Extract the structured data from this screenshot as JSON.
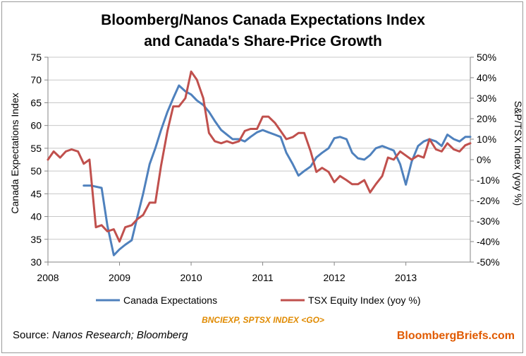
{
  "title_line1": "Bloomberg/Nanos Canada Expectations Index",
  "title_line2": "and Canada's Share-Price Growth",
  "source_prefix": "Source: ",
  "source_italic": "Nanos Research; Bloomberg",
  "ticker": "BNCIEXP, SPTSX INDEX <GO>",
  "brand": "BloombergBriefs.com",
  "colors": {
    "series1": "#4f81bd",
    "series2": "#c0504d",
    "grid": "#c8c8c8",
    "axis": "#868686"
  },
  "chart_data": {
    "type": "line",
    "title": "Bloomberg/Nanos Canada Expectations Index and Canada's Share-Price Growth",
    "ylabel": "Canada Expectations Index",
    "y2label": "S&P/TSX Index (yoy %)",
    "xlim": [
      2008,
      2013.9
    ],
    "ylim": [
      30,
      75
    ],
    "y2lim": [
      -50,
      50
    ],
    "x_ticks": [
      "2008",
      "2009",
      "2010",
      "2011",
      "2012",
      "2013"
    ],
    "y_ticks": [
      "30",
      "35",
      "40",
      "45",
      "50",
      "55",
      "60",
      "65",
      "70",
      "75"
    ],
    "y2_ticks": [
      "-50%",
      "-40%",
      "-30%",
      "-20%",
      "-10%",
      "0%",
      "10%",
      "20%",
      "30%",
      "40%",
      "50%"
    ],
    "grid": true,
    "legend_position": "bottom",
    "series": [
      {
        "name": "Canada Expectations",
        "axis": "left",
        "x": [
          2008.5,
          2008.6,
          2008.75,
          2008.83,
          2008.92,
          2009.0,
          2009.08,
          2009.17,
          2009.25,
          2009.33,
          2009.42,
          2009.5,
          2009.58,
          2009.67,
          2009.75,
          2009.83,
          2009.92,
          2010.0,
          2010.08,
          2010.17,
          2010.25,
          2010.33,
          2010.42,
          2010.5,
          2010.58,
          2010.67,
          2010.75,
          2010.83,
          2010.92,
          2011.0,
          2011.08,
          2011.17,
          2011.25,
          2011.33,
          2011.42,
          2011.5,
          2011.58,
          2011.67,
          2011.75,
          2011.83,
          2011.92,
          2012.0,
          2012.08,
          2012.17,
          2012.25,
          2012.33,
          2012.42,
          2012.5,
          2012.58,
          2012.67,
          2012.75,
          2012.83,
          2012.92,
          2013.0,
          2013.08,
          2013.17,
          2013.25,
          2013.33,
          2013.42,
          2013.5,
          2013.58,
          2013.67,
          2013.75,
          2013.83,
          2013.9
        ],
        "values": [
          46.8,
          46.8,
          46.3,
          38.0,
          31.5,
          32.8,
          33.8,
          34.8,
          40.0,
          45.0,
          51.5,
          55.0,
          59.0,
          63.0,
          66.0,
          68.8,
          67.5,
          66.8,
          65.5,
          64.5,
          63.0,
          61.0,
          59.0,
          58.0,
          57.0,
          57.0,
          56.5,
          57.5,
          58.5,
          59.0,
          58.5,
          58.0,
          57.5,
          54.0,
          51.5,
          49.0,
          50.0,
          51.0,
          53.0,
          54.0,
          55.0,
          57.2,
          57.5,
          57.0,
          54.0,
          52.8,
          52.5,
          53.5,
          55.0,
          55.5,
          55.0,
          54.5,
          51.5,
          47.0,
          52.0,
          55.5,
          56.5,
          57.0,
          56.5,
          55.5,
          58.0,
          57.0,
          56.5,
          57.5,
          57.5
        ]
      },
      {
        "name": "TSX Equity Index (yoy %)",
        "axis": "right",
        "x": [
          2008.0,
          2008.08,
          2008.17,
          2008.25,
          2008.33,
          2008.42,
          2008.5,
          2008.58,
          2008.67,
          2008.75,
          2008.83,
          2008.92,
          2009.0,
          2009.08,
          2009.17,
          2009.25,
          2009.33,
          2009.42,
          2009.5,
          2009.58,
          2009.67,
          2009.75,
          2009.83,
          2009.92,
          2010.0,
          2010.08,
          2010.17,
          2010.25,
          2010.33,
          2010.42,
          2010.5,
          2010.58,
          2010.67,
          2010.75,
          2010.83,
          2010.92,
          2011.0,
          2011.08,
          2011.17,
          2011.25,
          2011.33,
          2011.42,
          2011.5,
          2011.58,
          2011.67,
          2011.75,
          2011.83,
          2011.92,
          2012.0,
          2012.08,
          2012.17,
          2012.25,
          2012.33,
          2012.42,
          2012.5,
          2012.58,
          2012.67,
          2012.75,
          2012.83,
          2012.92,
          2013.0,
          2013.08,
          2013.17,
          2013.25,
          2013.33,
          2013.42,
          2013.5,
          2013.58,
          2013.67,
          2013.75,
          2013.83,
          2013.9
        ],
        "values": [
          0,
          4,
          1,
          4,
          5,
          4,
          -2,
          0,
          -33,
          -32,
          -35,
          -34,
          -40,
          -33,
          -32,
          -29,
          -27,
          -21,
          -21,
          -3,
          14,
          26,
          26,
          30,
          43,
          39,
          30,
          13,
          9,
          8,
          9,
          8,
          9,
          14,
          15,
          15,
          21,
          21,
          18,
          14,
          10,
          11,
          13,
          13,
          4,
          -6,
          -4,
          -6,
          -11,
          -8,
          -10,
          -12,
          -12,
          -10,
          -16,
          -12,
          -8,
          1,
          0,
          4,
          2,
          0,
          2,
          1,
          10,
          5,
          4,
          8,
          5,
          4,
          7,
          8
        ]
      }
    ]
  }
}
